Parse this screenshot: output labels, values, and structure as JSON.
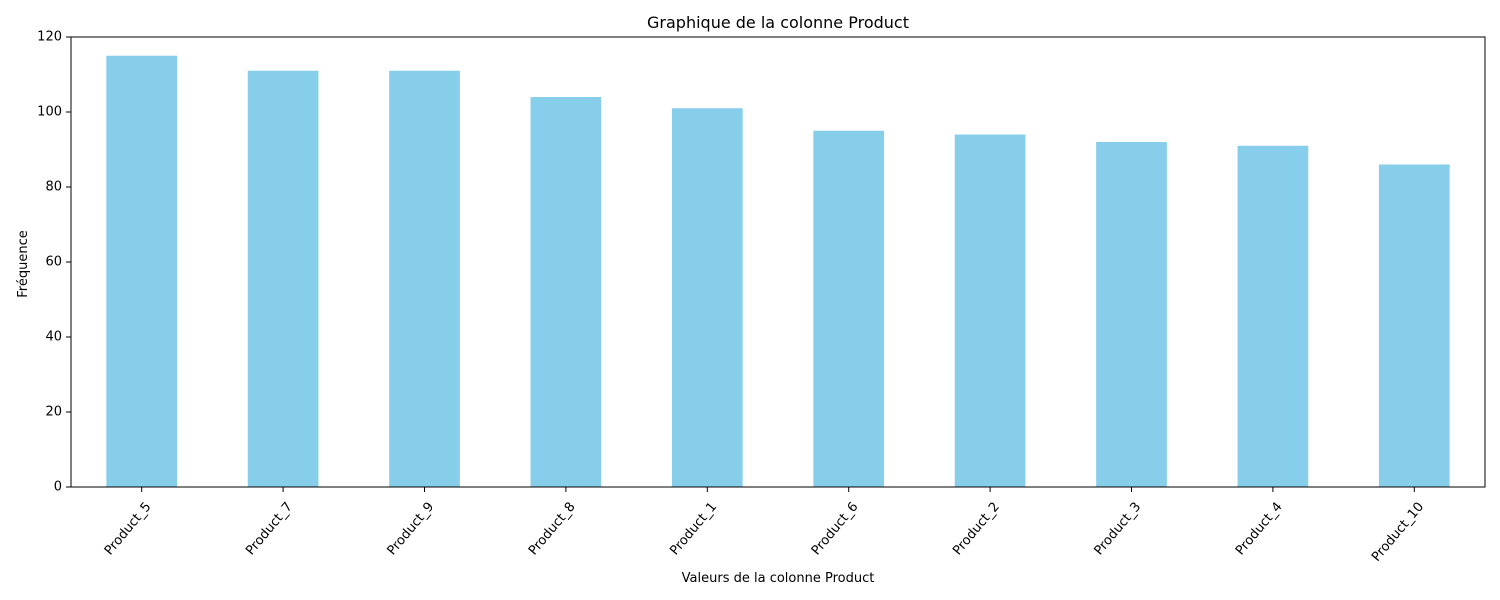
{
  "chart_data": {
    "type": "bar",
    "title": "Graphique de la colonne Product",
    "xlabel": "Valeurs de la colonne Product",
    "ylabel": "Fréquence",
    "categories": [
      "Product_5",
      "Product_7",
      "Product_9",
      "Product_8",
      "Product_1",
      "Product_6",
      "Product_2",
      "Product_3",
      "Product_4",
      "Product_10"
    ],
    "values": [
      115,
      111,
      111,
      104,
      101,
      95,
      94,
      92,
      91,
      86
    ],
    "ylim": [
      0,
      120
    ],
    "yticks": [
      0,
      20,
      40,
      60,
      80,
      100,
      120
    ],
    "xtick_rotation_deg": 50,
    "grid": false,
    "legend": "none",
    "bar_color": "#87ceeb"
  }
}
